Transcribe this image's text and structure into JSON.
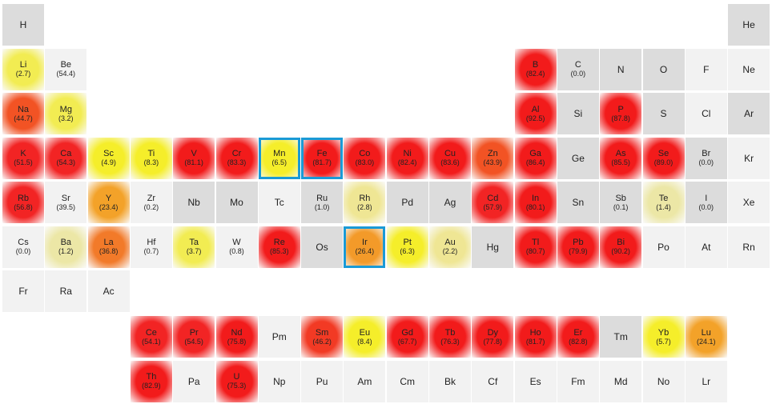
{
  "elements": [
    {
      "symbol": "H",
      "value": "",
      "row": 1,
      "col": 1,
      "shade": "gray"
    },
    {
      "symbol": "He",
      "value": "",
      "row": 1,
      "col": 18,
      "shade": "gray"
    },
    {
      "symbol": "Li",
      "value": "(2.7)",
      "row": 2,
      "col": 1,
      "color": "#f2ec52"
    },
    {
      "symbol": "Be",
      "value": "(54.4)",
      "row": 2,
      "col": 2,
      "shade": "light"
    },
    {
      "symbol": "B",
      "value": "(82.4)",
      "row": 2,
      "col": 13,
      "color": "#f21b1b"
    },
    {
      "symbol": "C",
      "value": "(0.0)",
      "row": 2,
      "col": 14,
      "shade": "gray"
    },
    {
      "symbol": "N",
      "value": "",
      "row": 2,
      "col": 15,
      "shade": "gray"
    },
    {
      "symbol": "O",
      "value": "",
      "row": 2,
      "col": 16,
      "shade": "gray"
    },
    {
      "symbol": "F",
      "value": "",
      "row": 2,
      "col": 17,
      "shade": "light"
    },
    {
      "symbol": "Ne",
      "value": "",
      "row": 2,
      "col": 18,
      "shade": "light"
    },
    {
      "symbol": "Na",
      "value": "(44.7)",
      "row": 3,
      "col": 1,
      "color": "#f25324"
    },
    {
      "symbol": "Mg",
      "value": "(3.2)",
      "row": 3,
      "col": 2,
      "color": "#f2ec52"
    },
    {
      "symbol": "Al",
      "value": "(92.5)",
      "row": 3,
      "col": 13,
      "color": "#f21b1b"
    },
    {
      "symbol": "Si",
      "value": "",
      "row": 3,
      "col": 14,
      "shade": "gray"
    },
    {
      "symbol": "P",
      "value": "(87.8)",
      "row": 3,
      "col": 15,
      "color": "#f21b1b"
    },
    {
      "symbol": "S",
      "value": "",
      "row": 3,
      "col": 16,
      "shade": "gray"
    },
    {
      "symbol": "Cl",
      "value": "",
      "row": 3,
      "col": 17,
      "shade": "light"
    },
    {
      "symbol": "Ar",
      "value": "",
      "row": 3,
      "col": 18,
      "shade": "gray"
    },
    {
      "symbol": "K",
      "value": "(51.5)",
      "row": 4,
      "col": 1,
      "color": "#f22424"
    },
    {
      "symbol": "Ca",
      "value": "(54.3)",
      "row": 4,
      "col": 2,
      "color": "#f22424"
    },
    {
      "symbol": "Sc",
      "value": "(4.9)",
      "row": 4,
      "col": 3,
      "color": "#f5ee2a"
    },
    {
      "symbol": "Ti",
      "value": "(8.3)",
      "row": 4,
      "col": 4,
      "color": "#f5ee2a"
    },
    {
      "symbol": "V",
      "value": "(81.1)",
      "row": 4,
      "col": 5,
      "color": "#f21b1b"
    },
    {
      "symbol": "Cr",
      "value": "(83.3)",
      "row": 4,
      "col": 6,
      "color": "#f21b1b"
    },
    {
      "symbol": "Mn",
      "value": "(6.5)",
      "row": 4,
      "col": 7,
      "color": "#f5ee2a",
      "highlight": true
    },
    {
      "symbol": "Fe",
      "value": "(81.7)",
      "row": 4,
      "col": 8,
      "color": "#f21b1b",
      "highlight": true
    },
    {
      "symbol": "Co",
      "value": "(83.0)",
      "row": 4,
      "col": 9,
      "color": "#f21b1b"
    },
    {
      "symbol": "Ni",
      "value": "(82.4)",
      "row": 4,
      "col": 10,
      "color": "#f21b1b"
    },
    {
      "symbol": "Cu",
      "value": "(83.6)",
      "row": 4,
      "col": 11,
      "color": "#f21b1b"
    },
    {
      "symbol": "Zn",
      "value": "(43.9)",
      "row": 4,
      "col": 12,
      "color": "#f25324"
    },
    {
      "symbol": "Ga",
      "value": "(86.4)",
      "row": 4,
      "col": 13,
      "color": "#f21b1b"
    },
    {
      "symbol": "Ge",
      "value": "",
      "row": 4,
      "col": 14,
      "shade": "gray"
    },
    {
      "symbol": "As",
      "value": "(85.5)",
      "row": 4,
      "col": 15,
      "color": "#f21b1b"
    },
    {
      "symbol": "Se",
      "value": "(89.0)",
      "row": 4,
      "col": 16,
      "color": "#f21b1b"
    },
    {
      "symbol": "Br",
      "value": "(0.0)",
      "row": 4,
      "col": 17,
      "shade": "gray"
    },
    {
      "symbol": "Kr",
      "value": "",
      "row": 4,
      "col": 18,
      "shade": "light"
    },
    {
      "symbol": "Rb",
      "value": "(56.8)",
      "row": 5,
      "col": 1,
      "color": "#f22424"
    },
    {
      "symbol": "Sr",
      "value": "(39.5)",
      "row": 5,
      "col": 2,
      "shade": "light"
    },
    {
      "symbol": "Y",
      "value": "(23.4)",
      "row": 5,
      "col": 3,
      "color": "#f3a229"
    },
    {
      "symbol": "Zr",
      "value": "(0.2)",
      "row": 5,
      "col": 4,
      "shade": "light"
    },
    {
      "symbol": "Nb",
      "value": "",
      "row": 5,
      "col": 5,
      "shade": "gray"
    },
    {
      "symbol": "Mo",
      "value": "",
      "row": 5,
      "col": 6,
      "shade": "gray"
    },
    {
      "symbol": "Tc",
      "value": "",
      "row": 5,
      "col": 7,
      "shade": "light"
    },
    {
      "symbol": "Ru",
      "value": "(1.0)",
      "row": 5,
      "col": 8,
      "shade": "gray"
    },
    {
      "symbol": "Rh",
      "value": "(2.8)",
      "row": 5,
      "col": 9,
      "color": "#efe694"
    },
    {
      "symbol": "Pd",
      "value": "",
      "row": 5,
      "col": 10,
      "shade": "gray"
    },
    {
      "symbol": "Ag",
      "value": "",
      "row": 5,
      "col": 11,
      "shade": "gray"
    },
    {
      "symbol": "Cd",
      "value": "(57.9)",
      "row": 5,
      "col": 12,
      "color": "#f22424"
    },
    {
      "symbol": "In",
      "value": "(80.1)",
      "row": 5,
      "col": 13,
      "color": "#f21b1b"
    },
    {
      "symbol": "Sn",
      "value": "",
      "row": 5,
      "col": 14,
      "shade": "gray"
    },
    {
      "symbol": "Sb",
      "value": "(0.1)",
      "row": 5,
      "col": 15,
      "shade": "gray"
    },
    {
      "symbol": "Te",
      "value": "(1.4)",
      "row": 5,
      "col": 16,
      "color": "#ece7a6"
    },
    {
      "symbol": "I",
      "value": "(0.0)",
      "row": 5,
      "col": 17,
      "shade": "gray"
    },
    {
      "symbol": "Xe",
      "value": "",
      "row": 5,
      "col": 18,
      "shade": "light"
    },
    {
      "symbol": "Cs",
      "value": "(0.0)",
      "row": 6,
      "col": 1,
      "shade": "light"
    },
    {
      "symbol": "Ba",
      "value": "(1.2)",
      "row": 6,
      "col": 2,
      "color": "#ece7a6"
    },
    {
      "symbol": "La",
      "value": "(36.8)",
      "row": 6,
      "col": 3,
      "color": "#f27a29"
    },
    {
      "symbol": "Hf",
      "value": "(0.7)",
      "row": 6,
      "col": 4,
      "shade": "light"
    },
    {
      "symbol": "Ta",
      "value": "(3.7)",
      "row": 6,
      "col": 5,
      "color": "#f2ec52"
    },
    {
      "symbol": "W",
      "value": "(0.8)",
      "row": 6,
      "col": 6,
      "shade": "light"
    },
    {
      "symbol": "Re",
      "value": "(85.3)",
      "row": 6,
      "col": 7,
      "color": "#f21b1b"
    },
    {
      "symbol": "Os",
      "value": "",
      "row": 6,
      "col": 8,
      "shade": "gray"
    },
    {
      "symbol": "Ir",
      "value": "(26.4)",
      "row": 6,
      "col": 9,
      "color": "#f39a29",
      "highlight": true
    },
    {
      "symbol": "Pt",
      "value": "(6.3)",
      "row": 6,
      "col": 10,
      "color": "#f5ee2a"
    },
    {
      "symbol": "Au",
      "value": "(2.2)",
      "row": 6,
      "col": 11,
      "color": "#efe694"
    },
    {
      "symbol": "Hg",
      "value": "",
      "row": 6,
      "col": 12,
      "shade": "gray"
    },
    {
      "symbol": "Tl",
      "value": "(80.7)",
      "row": 6,
      "col": 13,
      "color": "#f21b1b"
    },
    {
      "symbol": "Pb",
      "value": "(79.9)",
      "row": 6,
      "col": 14,
      "color": "#f21b1b"
    },
    {
      "symbol": "Bi",
      "value": "(90.2)",
      "row": 6,
      "col": 15,
      "color": "#f21b1b"
    },
    {
      "symbol": "Po",
      "value": "",
      "row": 6,
      "col": 16,
      "shade": "light"
    },
    {
      "symbol": "At",
      "value": "",
      "row": 6,
      "col": 17,
      "shade": "light"
    },
    {
      "symbol": "Rn",
      "value": "",
      "row": 6,
      "col": 18,
      "shade": "light"
    },
    {
      "symbol": "Fr",
      "value": "",
      "row": 7,
      "col": 1,
      "shade": "light"
    },
    {
      "symbol": "Ra",
      "value": "",
      "row": 7,
      "col": 2,
      "shade": "light"
    },
    {
      "symbol": "Ac",
      "value": "",
      "row": 7,
      "col": 3,
      "shade": "light"
    },
    {
      "symbol": "Ce",
      "value": "(54.1)",
      "row": 8,
      "col": 4,
      "color": "#f22424"
    },
    {
      "symbol": "Pr",
      "value": "(54.5)",
      "row": 8,
      "col": 5,
      "color": "#f22424"
    },
    {
      "symbol": "Nd",
      "value": "(75.8)",
      "row": 8,
      "col": 6,
      "color": "#f21b1b"
    },
    {
      "symbol": "Pm",
      "value": "",
      "row": 8,
      "col": 7,
      "shade": "light"
    },
    {
      "symbol": "Sm",
      "value": "(46.2)",
      "row": 8,
      "col": 8,
      "color": "#f23a24"
    },
    {
      "symbol": "Eu",
      "value": "(8.4)",
      "row": 8,
      "col": 9,
      "color": "#f5ee2a"
    },
    {
      "symbol": "Gd",
      "value": "(67.7)",
      "row": 8,
      "col": 10,
      "color": "#f21b1b"
    },
    {
      "symbol": "Tb",
      "value": "(76.3)",
      "row": 8,
      "col": 11,
      "color": "#f21b1b"
    },
    {
      "symbol": "Dy",
      "value": "(77.8)",
      "row": 8,
      "col": 12,
      "color": "#f21b1b"
    },
    {
      "symbol": "Ho",
      "value": "(81.7)",
      "row": 8,
      "col": 13,
      "color": "#f21b1b"
    },
    {
      "symbol": "Er",
      "value": "(82.8)",
      "row": 8,
      "col": 14,
      "color": "#f21b1b"
    },
    {
      "symbol": "Tm",
      "value": "",
      "row": 8,
      "col": 15,
      "shade": "gray"
    },
    {
      "symbol": "Yb",
      "value": "(5.7)",
      "row": 8,
      "col": 16,
      "color": "#f5ee2a"
    },
    {
      "symbol": "Lu",
      "value": "(24.1)",
      "row": 8,
      "col": 17,
      "color": "#f3a229"
    },
    {
      "symbol": "Th",
      "value": "(82.9)",
      "row": 9,
      "col": 4,
      "color": "#f21b1b"
    },
    {
      "symbol": "Pa",
      "value": "",
      "row": 9,
      "col": 5,
      "shade": "light"
    },
    {
      "symbol": "U",
      "value": "(75.3)",
      "row": 9,
      "col": 6,
      "color": "#f21b1b"
    },
    {
      "symbol": "Np",
      "value": "",
      "row": 9,
      "col": 7,
      "shade": "light"
    },
    {
      "symbol": "Pu",
      "value": "",
      "row": 9,
      "col": 8,
      "shade": "light"
    },
    {
      "symbol": "Am",
      "value": "",
      "row": 9,
      "col": 9,
      "shade": "light"
    },
    {
      "symbol": "Cm",
      "value": "",
      "row": 9,
      "col": 10,
      "shade": "light"
    },
    {
      "symbol": "Bk",
      "value": "",
      "row": 9,
      "col": 11,
      "shade": "light"
    },
    {
      "symbol": "Cf",
      "value": "",
      "row": 9,
      "col": 12,
      "shade": "light"
    },
    {
      "symbol": "Es",
      "value": "",
      "row": 9,
      "col": 13,
      "shade": "light"
    },
    {
      "symbol": "Fm",
      "value": "",
      "row": 9,
      "col": 14,
      "shade": "light"
    },
    {
      "symbol": "Md",
      "value": "",
      "row": 9,
      "col": 15,
      "shade": "light"
    },
    {
      "symbol": "No",
      "value": "",
      "row": 9,
      "col": 16,
      "shade": "light"
    },
    {
      "symbol": "Lr",
      "value": "",
      "row": 9,
      "col": 17,
      "shade": "light"
    }
  ]
}
